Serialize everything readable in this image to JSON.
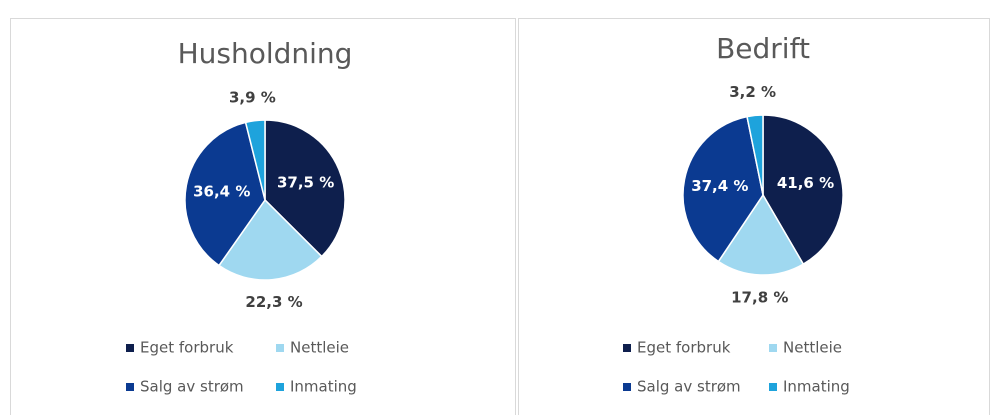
{
  "chart_data": [
    {
      "type": "pie",
      "title": "Husholdning",
      "categories": [
        "Eget forbruk",
        "Nettleie",
        "Salg av strøm",
        "Inmating"
      ],
      "values": [
        37.5,
        22.3,
        36.4,
        3.9
      ],
      "value_labels": [
        "37,5 %",
        "22,3 %",
        "36,4 %",
        "3,9 %"
      ],
      "colors": [
        "#0e1f4d",
        "#9fd8f0",
        "#0b3a91",
        "#1ea3dc"
      ]
    },
    {
      "type": "pie",
      "title": "Bedrift",
      "categories": [
        "Eget forbruk",
        "Nettleie",
        "Salg av strøm",
        "Inmating"
      ],
      "values": [
        41.6,
        17.8,
        37.4,
        3.2
      ],
      "value_labels": [
        "41,6 %",
        "17,8 %",
        "37,4 %",
        "3,2 %"
      ],
      "colors": [
        "#0e1f4d",
        "#9fd8f0",
        "#0b3a91",
        "#1ea3dc"
      ]
    }
  ]
}
